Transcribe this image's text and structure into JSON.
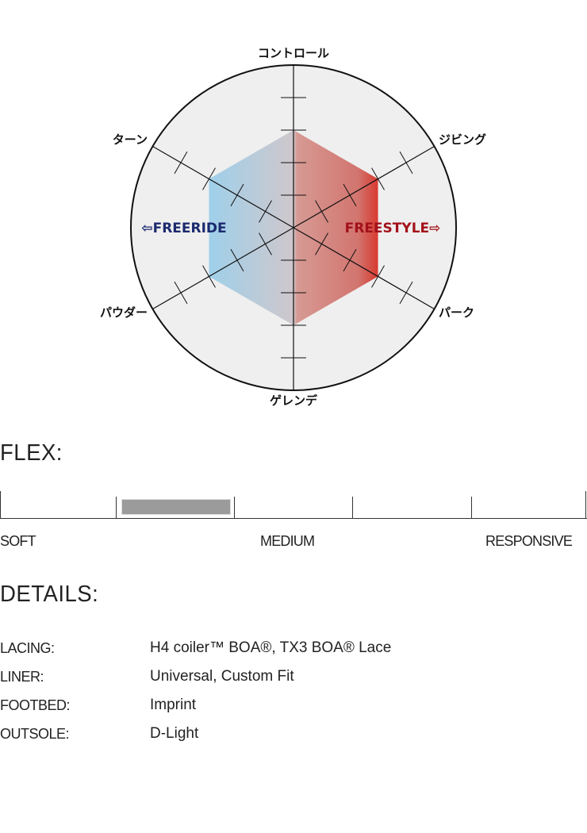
{
  "chart_data": {
    "type": "radar",
    "axes": [
      "コントロール",
      "ジビング",
      "パーク",
      "ゲレンデ",
      "パウダー",
      "ターン"
    ],
    "values": [
      3,
      3,
      3,
      3,
      3,
      3
    ],
    "range": [
      0,
      5
    ],
    "ticks": [
      1,
      2,
      3,
      4
    ],
    "left_label": "⇦FREERIDE",
    "right_label": "FREESTYLE⇨",
    "colors": {
      "freeride": "#1c2a6e",
      "freestyle": "#a3111a",
      "fill_left": "#9fd0ea",
      "fill_right": "#d2756f",
      "fill_edge": "#d83a30",
      "circle_bg": "#efefef"
    }
  },
  "flex": {
    "title": "FLEX:",
    "segments": 5,
    "selected_segment": 2,
    "labels": {
      "soft": "SOFT",
      "medium": "MEDIUM",
      "responsive": "RESPONSIVE"
    },
    "fill_color": "#9b9b9b"
  },
  "details": {
    "title": "DETAILS:",
    "rows": [
      {
        "key": "LACING:",
        "value": "H4 coiler™ BOA®, TX3 BOA® Lace"
      },
      {
        "key": "LINER:",
        "value": "Universal, Custom Fit"
      },
      {
        "key": "FOOTBED:",
        "value": "Imprint"
      },
      {
        "key": "OUTSOLE:",
        "value": "D-Light"
      }
    ]
  }
}
